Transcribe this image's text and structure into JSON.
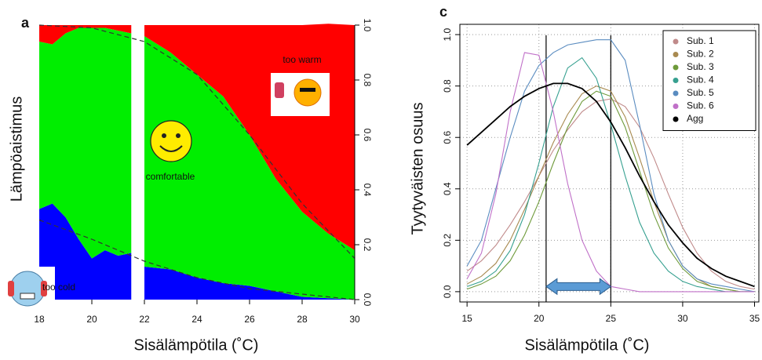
{
  "chart_data": [
    {
      "type": "stacked-area",
      "panel": "a",
      "ylabel": "Lämpöaistimus",
      "xlabel": "Sisälämpötila (˚C)",
      "x": [
        18,
        18.5,
        19,
        19.5,
        20,
        20.5,
        21,
        21.5,
        21.7,
        22,
        23,
        24,
        25,
        26,
        27,
        28,
        29,
        30
      ],
      "series": [
        {
          "name": "too cold",
          "color": "#0000ff",
          "values": [
            0.33,
            0.35,
            0.3,
            0.22,
            0.15,
            0.18,
            0.16,
            0.17,
            null,
            0.12,
            0.11,
            0.08,
            0.06,
            0.05,
            0.03,
            0.01,
            0.005,
            0
          ]
        },
        {
          "name": "comfortable",
          "color": "#00ee00",
          "values": [
            0.61,
            0.58,
            0.67,
            0.77,
            0.84,
            0.81,
            0.82,
            0.8,
            null,
            0.84,
            0.79,
            0.74,
            0.68,
            0.55,
            0.41,
            0.31,
            0.235,
            0.18
          ]
        },
        {
          "name": "too warm",
          "color": "#ff0000",
          "values": [
            0.06,
            0.07,
            0.03,
            0.01,
            0.01,
            0.01,
            0.02,
            0.03,
            null,
            0.04,
            0.1,
            0.18,
            0.26,
            0.4,
            0.56,
            0.68,
            0.765,
            0.82
          ]
        }
      ],
      "fits": [
        {
          "x": [
            18,
            20,
            22,
            24,
            26,
            28,
            30
          ],
          "values": [
            0.29,
            0.22,
            0.14,
            0.08,
            0.04,
            0.02,
            0.0
          ]
        },
        {
          "x": [
            18,
            20,
            22,
            24,
            26,
            28,
            30
          ],
          "values": [
            1.0,
            0.99,
            0.94,
            0.82,
            0.6,
            0.35,
            0.15
          ]
        }
      ],
      "xlim": [
        17.85,
        30
      ],
      "ylim": [
        0,
        1
      ],
      "xticks": [
        18,
        20,
        22,
        24,
        26,
        28,
        30
      ],
      "yticks": [
        {
          "value": 0,
          "label": "0.0"
        },
        {
          "value": 0.2,
          "label": "0.2"
        },
        {
          "value": 0.4,
          "label": "0.4"
        },
        {
          "value": 0.6,
          "label": "0.6"
        },
        {
          "value": 0.8,
          "label": "0.8"
        },
        {
          "value": 1,
          "label": "1.0"
        }
      ]
    },
    {
      "type": "line",
      "panel": "c",
      "ylabel": "Tyytyväisten osuus",
      "xlabel": "Sisälämpötila (˚C)",
      "x": [
        15,
        16,
        17,
        18,
        19,
        20,
        21,
        22,
        23,
        24,
        25,
        26,
        27,
        28,
        29,
        30,
        31,
        32,
        33,
        34,
        35
      ],
      "series": [
        {
          "name": "Sub. 1",
          "color": "#c08a8a",
          "values": [
            0.08,
            0.12,
            0.18,
            0.26,
            0.35,
            0.45,
            0.55,
            0.63,
            0.7,
            0.74,
            0.75,
            0.72,
            0.64,
            0.52,
            0.38,
            0.25,
            0.15,
            0.08,
            0.04,
            0.02,
            0.01
          ]
        },
        {
          "name": "Sub. 2",
          "color": "#a88a50",
          "values": [
            0.03,
            0.06,
            0.11,
            0.2,
            0.32,
            0.45,
            0.58,
            0.69,
            0.77,
            0.8,
            0.78,
            0.68,
            0.52,
            0.35,
            0.2,
            0.1,
            0.05,
            0.02,
            0.01,
            0,
            0
          ]
        },
        {
          "name": "Sub. 3",
          "color": "#6e9a3a",
          "values": [
            0.01,
            0.03,
            0.06,
            0.12,
            0.22,
            0.35,
            0.5,
            0.64,
            0.74,
            0.78,
            0.76,
            0.64,
            0.47,
            0.3,
            0.17,
            0.09,
            0.04,
            0.02,
            0.01,
            0,
            0
          ]
        },
        {
          "name": "Sub. 4",
          "color": "#36a090",
          "values": [
            0.02,
            0.04,
            0.08,
            0.16,
            0.3,
            0.5,
            0.72,
            0.87,
            0.91,
            0.83,
            0.65,
            0.45,
            0.27,
            0.15,
            0.08,
            0.04,
            0.02,
            0.01,
            0,
            0,
            0
          ]
        },
        {
          "name": "Sub. 5",
          "color": "#5a8cc0",
          "values": [
            0.1,
            0.2,
            0.4,
            0.6,
            0.78,
            0.88,
            0.93,
            0.96,
            0.97,
            0.98,
            0.98,
            0.9,
            0.65,
            0.38,
            0.2,
            0.1,
            0.05,
            0.03,
            0.02,
            0.01,
            0
          ]
        },
        {
          "name": "Sub. 6",
          "color": "#c070c8",
          "values": [
            0.05,
            0.15,
            0.38,
            0.7,
            0.93,
            0.92,
            0.7,
            0.42,
            0.2,
            0.08,
            0.02,
            0.01,
            0,
            0,
            0,
            0,
            0,
            0,
            0,
            0,
            0
          ]
        },
        {
          "name": "Agg",
          "color": "#000000",
          "values": [
            0.57,
            0.62,
            0.67,
            0.72,
            0.76,
            0.79,
            0.81,
            0.81,
            0.79,
            0.74,
            0.66,
            0.56,
            0.45,
            0.35,
            0.26,
            0.19,
            0.13,
            0.09,
            0.06,
            0.04,
            0.02
          ]
        }
      ],
      "vlines": [
        20.5,
        25
      ],
      "xlim": [
        14.5,
        35.3
      ],
      "ylim": [
        -0.04,
        1.04
      ],
      "xticks": [
        15,
        20,
        25,
        30,
        35
      ],
      "yticks": [
        {
          "value": 0,
          "label": "0.0"
        },
        {
          "value": 0.2,
          "label": "0.2"
        },
        {
          "value": 0.4,
          "label": "0.4"
        },
        {
          "value": 0.6,
          "label": "0.6"
        },
        {
          "value": 0.8,
          "label": "0.8"
        },
        {
          "value": 1,
          "label": "1.0"
        }
      ],
      "grid": true,
      "legend": "top-right"
    }
  ]
}
